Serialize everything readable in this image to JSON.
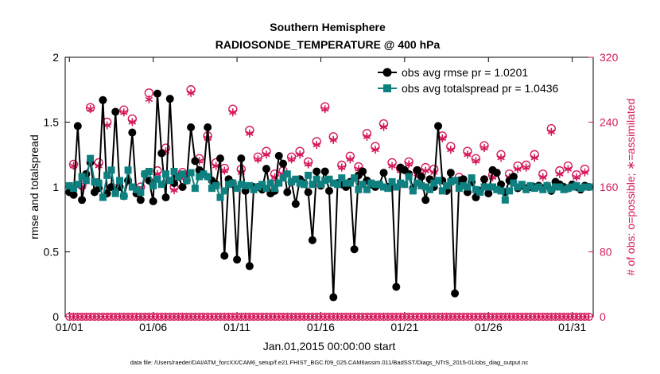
{
  "colors": {
    "rmse": "#000000",
    "spread": "#0f8080",
    "obs": "#d41a5c",
    "axis": "#000000"
  },
  "chart_data": {
    "type": "line",
    "title_line1": "Southern Hemisphere",
    "title_line2": "RADIOSONDE_TEMPERATURE @ 400 hPa",
    "xlabel": "Jan.01,2015 00:00:00 start",
    "ylabel_left": "rmse and totalspread",
    "ylabel_right": "# of obs: o=possible; ∗=assimilated",
    "footer": "data file: /Users/raeder/DAI/ATM_forcXX/CAM6_setup/f.e21.FHIST_BGC.f09_025.CAM6assim.011/BadSST/Diags_NTrS_2015-01/obs_diag_output.nc",
    "xlim": [
      0.75,
      32.25
    ],
    "x_ticks": [
      1,
      6,
      11,
      16,
      21,
      26,
      31
    ],
    "x_tick_labels": [
      "01/01",
      "01/06",
      "01/11",
      "01/16",
      "01/21",
      "01/26",
      "01/31"
    ],
    "ylim_left": [
      0,
      2
    ],
    "y_ticks_left": [
      "0",
      "0.5",
      "1",
      "1.5",
      "2"
    ],
    "ylim_right": [
      0,
      320
    ],
    "y_ticks_right": [
      "0",
      "80",
      "160",
      "240",
      "320"
    ],
    "legend": [
      "obs avg rmse pr = 1.0201",
      "obs avg totalspread pr = 1.0436"
    ],
    "x": [
      1,
      1.25,
      1.5,
      1.75,
      2,
      2.25,
      2.5,
      2.75,
      3,
      3.25,
      3.5,
      3.75,
      4,
      4.25,
      4.5,
      4.75,
      5,
      5.25,
      5.5,
      5.75,
      6,
      6.25,
      6.5,
      6.75,
      7,
      7.25,
      7.5,
      7.75,
      8,
      8.25,
      8.5,
      8.75,
      9,
      9.25,
      9.5,
      9.75,
      10,
      10.25,
      10.5,
      10.75,
      11,
      11.25,
      11.5,
      11.75,
      12,
      12.25,
      12.5,
      12.75,
      13,
      13.25,
      13.5,
      13.75,
      14,
      14.25,
      14.5,
      14.75,
      15,
      15.25,
      15.5,
      15.75,
      16,
      16.25,
      16.5,
      16.75,
      17,
      17.25,
      17.5,
      17.75,
      18,
      18.25,
      18.5,
      18.75,
      19,
      19.25,
      19.5,
      19.75,
      20,
      20.25,
      20.5,
      20.75,
      21,
      21.25,
      21.5,
      21.75,
      22,
      22.25,
      22.5,
      22.75,
      23,
      23.25,
      23.5,
      23.75,
      24,
      24.25,
      24.5,
      24.75,
      25,
      25.25,
      25.5,
      25.75,
      26,
      26.25,
      26.5,
      26.75,
      27,
      27.25,
      27.5,
      27.75,
      28,
      28.25,
      28.5,
      28.75,
      29,
      29.25,
      29.5,
      29.75,
      30,
      30.25,
      30.5,
      30.75,
      31,
      31.25,
      31.5,
      31.75,
      32
    ],
    "series": [
      {
        "name": "obs avg rmse",
        "values": [
          0.96,
          0.94,
          1.47,
          0.9,
          1.1,
          1.19,
          0.96,
          0.99,
          1.67,
          0.95,
          1.0,
          1.58,
          1.0,
          0.93,
          1.05,
          1.42,
          0.95,
          0.9,
          1.1,
          1.05,
          0.89,
          1.72,
          1.26,
          0.92,
          1.68,
          1.03,
          1.08,
          1.0,
          1.05,
          1.46,
          1.2,
          1.13,
          1.1,
          1.46,
          1.05,
          1.02,
          1.22,
          0.47,
          1.06,
          1.03,
          0.44,
          1.22,
          0.97,
          0.39,
          1.0,
          1.0,
          0.98,
          1.14,
          0.95,
          0.97,
          1.24,
          1.18,
          0.96,
          1.04,
          0.87,
          1.06,
          1.03,
          0.96,
          0.59,
          1.12,
          1.01,
          1.12,
          0.97,
          0.15,
          1.03,
          1.02,
          1.0,
          1.04,
          0.52,
          1.09,
          1.12,
          1.05,
          1.02,
          1.0,
          1.02,
          1.11,
          1.0,
          1.0,
          0.23,
          1.15,
          1.13,
          1.1,
          0.99,
          1.13,
          1.08,
          0.9,
          1.06,
          1.0,
          1.47,
          1.05,
          0.97,
          1.11,
          0.18,
          1.05,
          1.06,
          0.96,
          1.04,
          0.92,
          0.97,
          1.06,
          0.95,
          1.13,
          1.11,
          1.02,
          0.96,
          1.05,
          1.08,
          0.99,
          1.01,
          0.99,
          1.0,
          1.0,
          1.01,
          0.99,
          1.01,
          0.97,
          1.04,
          1.02,
          1.0,
          0.99,
          1.02,
          1.0,
          0.98,
          1.01,
          1.0
        ]
      },
      {
        "name": "obs avg totalspread",
        "values": [
          1.01,
          0.99,
          1.02,
          1.08,
          1.05,
          1.22,
          1.04,
          1.03,
          0.92,
          1.09,
          1.13,
          0.95,
          1.05,
          0.93,
          1.13,
          1.0,
          0.98,
          0.96,
          1.1,
          1.12,
          1.01,
          1.06,
          1.02,
          1.1,
          1.05,
          1.12,
          1.08,
          1.1,
          1.05,
          1.11,
          0.99,
          1.08,
          1.1,
          1.08,
          0.99,
          1.01,
          0.92,
          0.97,
          1.02,
          1.03,
          0.99,
          1.02,
          1.01,
          1.01,
          0.98,
          1.0,
          1.02,
          0.99,
          1.03,
          0.99,
          1.03,
          1.07,
          1.1,
          1.04,
          1.06,
          1.03,
          1.02,
          1.09,
          1.02,
          1.06,
          1.02,
          1.05,
          1.06,
          1.03,
          1.02,
          1.07,
          1.03,
          1.03,
          1.07,
          0.98,
          1.02,
          0.98,
          1.03,
          1.02,
          1.02,
          1.0,
          0.99,
          1.04,
          1.0,
          1.03,
          1.02,
          1.08,
          0.97,
          1.03,
          1.01,
          1.0,
          0.98,
          1.03,
          1.05,
          0.97,
          1.01,
          1.04,
          1.05,
          0.99,
          1.01,
          1.0,
          1.07,
          0.98,
          0.96,
          1.0,
          1.0,
          1.0,
          0.98,
          0.97,
          0.9,
          0.97,
          1.03,
          1.0,
          1.02,
          0.98,
          1.01,
          0.99,
          1.0,
          0.98,
          1.01,
          0.98,
          1.0,
          1.0,
          0.98,
          0.99,
          1.0,
          1.01,
          0.99,
          1.0,
          1.0
        ]
      }
    ],
    "obs_possible": {
      "x": [
        1.25,
        1.75,
        2.25,
        2.75,
        3.25,
        3.75,
        4.25,
        4.75,
        5.25,
        5.75,
        6.25,
        6.75,
        7.25,
        7.75,
        8.25,
        8.75,
        9.25,
        9.75,
        10.25,
        10.75,
        11.25,
        11.75,
        12.25,
        12.75,
        13.25,
        13.75,
        14.25,
        14.75,
        15.25,
        15.75,
        16.25,
        16.75,
        17.25,
        17.75,
        18.25,
        18.75,
        19.25,
        19.75,
        20.25,
        20.75,
        21.25,
        21.75,
        22.25,
        22.75,
        23.25,
        23.75,
        24.25,
        24.75,
        25.25,
        25.75,
        26.25,
        26.75,
        27.25,
        27.75,
        28.25,
        28.75,
        29.25,
        29.75,
        30.25,
        30.75,
        31.25,
        31.75
      ],
      "values": [
        188,
        162,
        258,
        190,
        240,
        158,
        255,
        244,
        160,
        276,
        180,
        208,
        160,
        178,
        280,
        195,
        223,
        190,
        183,
        256,
        182,
        230,
        197,
        204,
        176,
        180,
        197,
        204,
        191,
        216,
        259,
        222,
        187,
        198,
        185,
        226,
        210,
        238,
        190,
        183,
        191,
        180,
        184,
        182,
        223,
        210,
        172,
        204,
        195,
        211,
        175,
        200,
        176,
        186,
        187,
        200,
        176,
        232,
        180,
        186,
        175,
        182
      ]
    },
    "obs_assimilated": {
      "x": [
        1.25,
        1.75,
        2.25,
        2.75,
        3.25,
        3.75,
        4.25,
        4.75,
        5.25,
        5.75,
        6.25,
        6.75,
        7.25,
        7.75,
        8.25,
        8.75,
        9.25,
        9.75,
        10.25,
        10.75,
        11.25,
        11.75,
        12.25,
        12.75,
        13.25,
        13.75,
        14.25,
        14.75,
        15.25,
        15.75,
        16.25,
        16.75,
        17.25,
        17.75,
        18.25,
        18.75,
        19.25,
        19.75,
        20.25,
        20.75,
        21.25,
        21.75,
        22.25,
        22.75,
        23.25,
        23.75,
        24.25,
        24.75,
        25.25,
        25.75,
        26.25,
        26.75,
        27.25,
        27.75,
        28.25,
        28.75,
        29.25,
        29.75,
        30.25,
        30.75,
        31.25,
        31.75
      ],
      "values": [
        186,
        160,
        256,
        186,
        236,
        156,
        252,
        240,
        156,
        268,
        176,
        204,
        156,
        174,
        276,
        192,
        220,
        186,
        180,
        252,
        178,
        226,
        194,
        200,
        172,
        176,
        194,
        200,
        188,
        212,
        256,
        218,
        184,
        194,
        182,
        222,
        206,
        234,
        186,
        180,
        188,
        176,
        180,
        178,
        220,
        206,
        168,
        200,
        192,
        208,
        172,
        196,
        172,
        182,
        184,
        196,
        172,
        228,
        176,
        182,
        172,
        178
      ]
    },
    "obs_zero": {
      "x_start": 1,
      "x_end": 32,
      "step": 0.25,
      "value": 0
    }
  }
}
